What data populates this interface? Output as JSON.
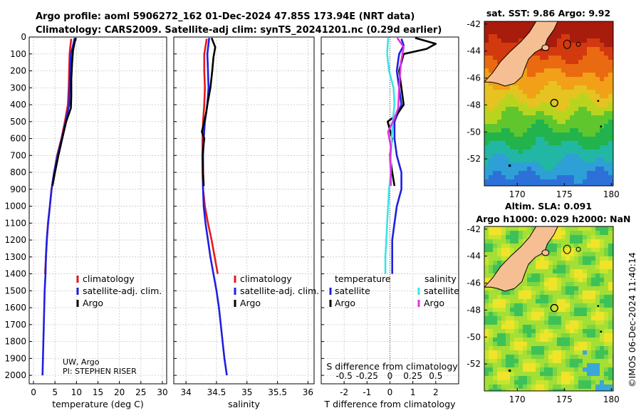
{
  "header": {
    "title_line1": "Argo profile: aoml 5906272_162 01-Dec-2024 47.85S 173.94E (NRT data)",
    "title_line2": "Climatology: CARS2009. Satellite-adj clim: synTS_20241201.nc (0.29d earlier)"
  },
  "credits": {
    "line1": "UW, Argo",
    "line2": "PI: STEPHEN RISER"
  },
  "copyright": "©IMOS 06-Dec-2024 11:40:14",
  "colors": {
    "climatology": "#e41a1c",
    "satellite": "#1f1fe0",
    "argo": "#000000",
    "sat_salinity": "#3fe0e8",
    "argo_salinity": "#e033e0"
  },
  "chart_data": [
    {
      "id": "temperature",
      "type": "line",
      "xlabel": "temperature (deg C)",
      "xlim": [
        -1,
        31
      ],
      "xticks": [
        "0",
        "5",
        "10",
        "15",
        "20",
        "25",
        "30"
      ],
      "ylim": [
        0,
        2050
      ],
      "yticks": [
        "0",
        "100",
        "200",
        "300",
        "400",
        "500",
        "600",
        "700",
        "800",
        "900",
        "1000",
        "1100",
        "1200",
        "1300",
        "1400",
        "1500",
        "1600",
        "1700",
        "1800",
        "1900",
        "2000"
      ],
      "legend": [
        "climatology",
        "satellite-adj. clim.",
        "Argo"
      ],
      "series": [
        {
          "name": "climatology",
          "color_key": "climatology",
          "points": [
            [
              8.8,
              10
            ],
            [
              8.6,
              50
            ],
            [
              8.4,
              100
            ],
            [
              8.3,
              200
            ],
            [
              8.2,
              300
            ],
            [
              8.0,
              400
            ],
            [
              7.3,
              500
            ],
            [
              6.5,
              600
            ],
            [
              5.5,
              700
            ],
            [
              4.8,
              800
            ],
            [
              4.2,
              900
            ],
            [
              3.8,
              1000
            ],
            [
              3.4,
              1100
            ],
            [
              3.1,
              1200
            ],
            [
              2.9,
              1300
            ],
            [
              2.7,
              1400
            ]
          ]
        },
        {
          "name": "satellite-adj. clim.",
          "color_key": "satellite",
          "points": [
            [
              9.6,
              5
            ],
            [
              9.2,
              50
            ],
            [
              8.7,
              100
            ],
            [
              8.5,
              200
            ],
            [
              8.4,
              300
            ],
            [
              8.3,
              400
            ],
            [
              7.5,
              500
            ],
            [
              6.6,
              600
            ],
            [
              5.6,
              700
            ],
            [
              4.8,
              800
            ],
            [
              4.2,
              900
            ],
            [
              3.8,
              1000
            ],
            [
              3.4,
              1100
            ],
            [
              3.1,
              1200
            ],
            [
              2.9,
              1300
            ],
            [
              2.8,
              1400
            ],
            [
              2.6,
              1500
            ],
            [
              2.5,
              1600
            ],
            [
              2.4,
              1700
            ],
            [
              2.3,
              1800
            ],
            [
              2.2,
              1900
            ],
            [
              2.1,
              2000
            ]
          ]
        },
        {
          "name": "Argo",
          "color_key": "argo",
          "points": [
            [
              9.9,
              5
            ],
            [
              9.6,
              30
            ],
            [
              9.2,
              80
            ],
            [
              9.0,
              150
            ],
            [
              8.8,
              250
            ],
            [
              8.8,
              350
            ],
            [
              8.7,
              420
            ],
            [
              7.6,
              500
            ],
            [
              6.7,
              600
            ],
            [
              5.8,
              700
            ],
            [
              5.0,
              800
            ],
            [
              4.4,
              880
            ]
          ]
        }
      ]
    },
    {
      "id": "salinity",
      "type": "line",
      "xlabel": "salinity",
      "xlim": [
        33.8,
        36.1
      ],
      "xticks": [
        "34",
        "34.5",
        "35",
        "35.5",
        "36"
      ],
      "ylim": [
        0,
        2050
      ],
      "legend": [
        "climatology",
        "satellite-adj. clim.",
        "Argo"
      ],
      "series": [
        {
          "name": "climatology",
          "color_key": "climatology",
          "points": [
            [
              34.34,
              10
            ],
            [
              34.3,
              100
            ],
            [
              34.3,
              200
            ],
            [
              34.31,
              300
            ],
            [
              34.3,
              400
            ],
            [
              34.28,
              500
            ],
            [
              34.27,
              600
            ],
            [
              34.27,
              700
            ],
            [
              34.27,
              800
            ],
            [
              34.28,
              900
            ],
            [
              34.31,
              1000
            ],
            [
              34.36,
              1100
            ],
            [
              34.42,
              1200
            ],
            [
              34.47,
              1300
            ],
            [
              34.52,
              1400
            ]
          ]
        },
        {
          "name": "satellite-adj. clim.",
          "color_key": "satellite",
          "points": [
            [
              34.38,
              5
            ],
            [
              34.35,
              100
            ],
            [
              34.36,
              200
            ],
            [
              34.37,
              300
            ],
            [
              34.35,
              400
            ],
            [
              34.31,
              500
            ],
            [
              34.29,
              600
            ],
            [
              34.28,
              700
            ],
            [
              34.28,
              800
            ],
            [
              34.28,
              900
            ],
            [
              34.29,
              1000
            ],
            [
              34.32,
              1100
            ],
            [
              34.36,
              1200
            ],
            [
              34.4,
              1300
            ],
            [
              34.45,
              1400
            ],
            [
              34.5,
              1500
            ],
            [
              34.54,
              1600
            ],
            [
              34.57,
              1700
            ],
            [
              34.6,
              1800
            ],
            [
              34.63,
              1900
            ],
            [
              34.67,
              2000
            ]
          ]
        },
        {
          "name": "Argo",
          "color_key": "argo",
          "points": [
            [
              34.42,
              5
            ],
            [
              34.48,
              60
            ],
            [
              34.45,
              120
            ],
            [
              34.43,
              200
            ],
            [
              34.4,
              300
            ],
            [
              34.35,
              400
            ],
            [
              34.33,
              450
            ],
            [
              34.3,
              500
            ],
            [
              34.26,
              560
            ],
            [
              34.3,
              600
            ],
            [
              34.27,
              700
            ],
            [
              34.28,
              800
            ],
            [
              34.29,
              880
            ]
          ]
        }
      ]
    },
    {
      "id": "difference",
      "type": "line",
      "xlabel": "T difference from climatology",
      "xlabel2": "S difference from climatology",
      "xlim": [
        -3,
        3
      ],
      "xticks": [
        "-2",
        "-1",
        "0",
        "1",
        "2"
      ],
      "xticks2": [
        "-0.5",
        "-0.25",
        "0",
        "0.25",
        "0.5"
      ],
      "xticks2_values": [
        -0.5,
        -0.25,
        0,
        0.25,
        0.5
      ],
      "s_scale": 4,
      "ylim": [
        0,
        2050
      ],
      "legend_titles": [
        "temperature",
        "salinity"
      ],
      "legend_t": [
        "satellite",
        "Argo"
      ],
      "legend_s": [
        "satellite",
        "Argo"
      ],
      "series": [
        {
          "name": "T satellite",
          "color_key": "satellite",
          "points": [
            [
              0.5,
              10
            ],
            [
              0.6,
              50
            ],
            [
              0.4,
              100
            ],
            [
              0.3,
              200
            ],
            [
              0.4,
              300
            ],
            [
              0.5,
              400
            ],
            [
              0.2,
              500
            ],
            [
              0.2,
              600
            ],
            [
              0.3,
              700
            ],
            [
              0.5,
              800
            ],
            [
              0.5,
              900
            ],
            [
              0.3,
              1000
            ],
            [
              0.2,
              1100
            ],
            [
              0.1,
              1200
            ],
            [
              0.1,
              1300
            ],
            [
              0.1,
              1400
            ]
          ]
        },
        {
          "name": "T Argo",
          "color_key": "argo",
          "points": [
            [
              1.1,
              5
            ],
            [
              2.0,
              40
            ],
            [
              1.6,
              70
            ],
            [
              0.6,
              100
            ],
            [
              0.4,
              200
            ],
            [
              0.5,
              300
            ],
            [
              0.6,
              400
            ],
            [
              0.3,
              460
            ],
            [
              -0.1,
              500
            ],
            [
              0.1,
              600
            ],
            [
              0.0,
              700
            ],
            [
              0.1,
              800
            ],
            [
              0.2,
              880
            ]
          ]
        },
        {
          "name": "S satellite",
          "color_key": "sat_salinity",
          "points": [
            [
              -0.02,
              5
            ],
            [
              -0.03,
              100
            ],
            [
              -0.01,
              200
            ],
            [
              0.04,
              300
            ],
            [
              0.05,
              400
            ],
            [
              0.03,
              500
            ],
            [
              0.02,
              600
            ],
            [
              0.01,
              700
            ],
            [
              0.01,
              800
            ],
            [
              -0.01,
              900
            ],
            [
              -0.02,
              1000
            ],
            [
              -0.03,
              1100
            ],
            [
              -0.04,
              1200
            ],
            [
              -0.05,
              1300
            ],
            [
              -0.05,
              1400
            ]
          ]
        },
        {
          "name": "S Argo",
          "color_key": "argo_salinity",
          "points": [
            [
              0.08,
              5
            ],
            [
              0.15,
              60
            ],
            [
              0.12,
              150
            ],
            [
              0.1,
              300
            ],
            [
              0.09,
              420
            ],
            [
              0.05,
              480
            ],
            [
              -0.02,
              560
            ],
            [
              0.01,
              650
            ],
            [
              0.0,
              720
            ],
            [
              0.01,
              800
            ],
            [
              0.01,
              880
            ]
          ]
        }
      ]
    }
  ],
  "maps": [
    {
      "id": "sst",
      "title": "sat. SST: 9.86 Argo: 9.92",
      "xticks": [
        "170",
        "175",
        "180"
      ],
      "xtick_values": [
        170,
        175,
        180
      ],
      "yticks": [
        "-42",
        "-44",
        "-46",
        "-48",
        "-50",
        "-52"
      ],
      "ytick_values": [
        -42,
        -44,
        -46,
        -48,
        -50,
        -52
      ],
      "lon_range": [
        166.5,
        180.2
      ],
      "lat_range": [
        -54.0,
        -41.8
      ],
      "float_lon": 173.94,
      "float_lat": -47.85
    },
    {
      "id": "sla",
      "title_line1": "Altim. SLA: 0.091",
      "title_line2": "Argo h1000: 0.029 h2000: NaN",
      "xticks": [
        "170",
        "175",
        "180"
      ],
      "xtick_values": [
        170,
        175,
        180
      ],
      "yticks": [
        "-42",
        "-44",
        "-46",
        "-48",
        "-50",
        "-52"
      ],
      "ytick_values": [
        -42,
        -44,
        -46,
        -48,
        -50,
        -52
      ],
      "lon_range": [
        166.5,
        180.2
      ],
      "lat_range": [
        -54.0,
        -41.8
      ],
      "float_lon": 173.94,
      "float_lat": -47.85
    }
  ]
}
